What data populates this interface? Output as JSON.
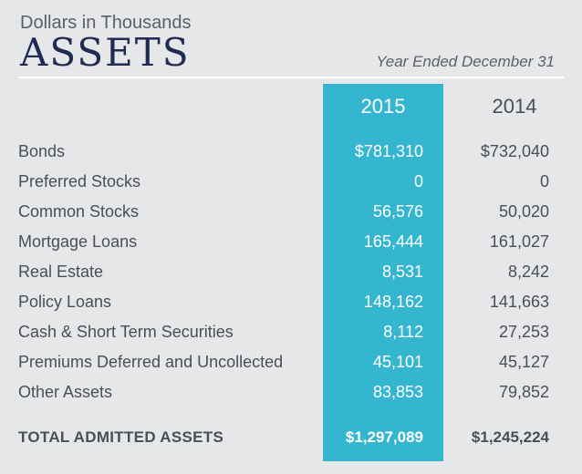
{
  "header": {
    "subtitle": "Dollars in Thousands",
    "title": "ASSETS",
    "period": "Year Ended December 31"
  },
  "columns": [
    "2015",
    "2014"
  ],
  "rows": [
    {
      "label": "Bonds",
      "v2015": "$781,310",
      "v2014": "$732,040"
    },
    {
      "label": "Preferred Stocks",
      "v2015": "0",
      "v2014": "0"
    },
    {
      "label": "Common Stocks",
      "v2015": "56,576",
      "v2014": "50,020"
    },
    {
      "label": "Mortgage Loans",
      "v2015": "165,444",
      "v2014": "161,027"
    },
    {
      "label": "Real Estate",
      "v2015": "8,531",
      "v2014": "8,242"
    },
    {
      "label": "Policy Loans",
      "v2015": "148,162",
      "v2014": "141,663"
    },
    {
      "label": "Cash & Short Term Securities",
      "v2015": "8,112",
      "v2014": "27,253"
    },
    {
      "label": "Premiums Deferred and Uncollected",
      "v2015": "45,101",
      "v2014": "45,127"
    },
    {
      "label": "Other Assets",
      "v2015": "83,853",
      "v2014": "79,852"
    }
  ],
  "total": {
    "label": "TOTAL ADMITTED ASSETS",
    "v2015": "$1,297,089",
    "v2014": "$1,245,224"
  },
  "colors": {
    "accent": "#35b6d0",
    "background": "#e6e7e8",
    "title": "#1f2b52"
  }
}
